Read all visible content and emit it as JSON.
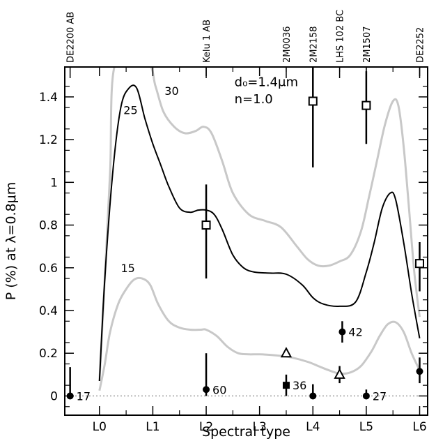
{
  "chart_data": {
    "type": "scatter",
    "xlabel": "Spectral type",
    "ylabel": "P (%) at λ=0.8μm",
    "xlim": [
      -0.65,
      6.15
    ],
    "ylim": [
      -0.09,
      1.54
    ],
    "x_ticks": [
      {
        "x": 0,
        "label": "L0"
      },
      {
        "x": 1,
        "label": "L1"
      },
      {
        "x": 2,
        "label": "L2"
      },
      {
        "x": 3,
        "label": "L3"
      },
      {
        "x": 4,
        "label": "L4"
      },
      {
        "x": 5,
        "label": "L5"
      },
      {
        "x": 6,
        "label": "L6"
      }
    ],
    "y_ticks": [
      {
        "y": 0,
        "label": "0"
      },
      {
        "y": 0.2,
        "label": "0.2"
      },
      {
        "y": 0.4,
        "label": "0.4"
      },
      {
        "y": 0.6,
        "label": "0.6"
      },
      {
        "y": 0.8,
        "label": "0.8"
      },
      {
        "y": 1.0,
        "label": "1"
      },
      {
        "y": 1.2,
        "label": "1.2"
      },
      {
        "y": 1.4,
        "label": "1.4"
      }
    ],
    "zero_line": true,
    "annotations": {
      "d0": "d₀=1.4μm",
      "n": "n=1.0"
    },
    "objects": [
      {
        "name": "DE2200 AB",
        "x": -0.55
      },
      {
        "name": "Kelu 1 AB",
        "x": 2.0
      },
      {
        "name": "2M0036",
        "x": 3.5
      },
      {
        "name": "2M2158",
        "x": 4.0
      },
      {
        "name": "LHS 102 BC",
        "x": 4.5
      },
      {
        "name": "2M1507",
        "x": 5.0
      },
      {
        "name": "DE2252",
        "x": 6.0
      }
    ],
    "series": [
      {
        "marker": "circle",
        "points": [
          {
            "x": -0.55,
            "y": 0.0,
            "ylo": 0.0,
            "yhi": 0.135,
            "label": "17"
          },
          {
            "x": 2.0,
            "y": 0.03,
            "ylo": 0.0,
            "yhi": 0.2,
            "label": "60"
          },
          {
            "x": 4.0,
            "y": 0.0,
            "ylo": 0.0,
            "yhi": 0.055,
            "label": ""
          },
          {
            "x": 4.55,
            "y": 0.3,
            "ylo": 0.25,
            "yhi": 0.35,
            "label": "42"
          },
          {
            "x": 5.0,
            "y": 0.0,
            "ylo": 0.0,
            "yhi": 0.03,
            "label": "27"
          },
          {
            "x": 6.0,
            "y": 0.115,
            "ylo": 0.06,
            "yhi": 0.18,
            "label": ""
          }
        ]
      },
      {
        "marker": "filled-square",
        "points": [
          {
            "x": 3.5,
            "y": 0.05,
            "ylo": 0.0,
            "yhi": 0.1,
            "label": "36"
          }
        ]
      },
      {
        "marker": "open-square",
        "points": [
          {
            "x": 2.0,
            "y": 0.8,
            "ylo": 0.55,
            "yhi": 0.99,
            "label": ""
          },
          {
            "x": 4.0,
            "y": 1.38,
            "ylo": 1.07,
            "yhi": 1.54,
            "label": ""
          },
          {
            "x": 5.0,
            "y": 1.36,
            "ylo": 1.18,
            "yhi": 1.52,
            "label": ""
          },
          {
            "x": 6.0,
            "y": 0.62,
            "ylo": 0.49,
            "yhi": 0.72,
            "label": ""
          }
        ]
      },
      {
        "marker": "open-triangle",
        "points": [
          {
            "x": 3.5,
            "y": 0.2,
            "ylo": 0.2,
            "yhi": 0.2,
            "label": ""
          },
          {
            "x": 4.5,
            "y": 0.1,
            "ylo": 0.06,
            "yhi": 0.14,
            "label": ""
          }
        ]
      }
    ],
    "curves": [
      {
        "label": "25",
        "label_x": 0.45,
        "label_y": 1.32,
        "color": "#000000",
        "x": [
          0.0,
          0.1,
          0.25,
          0.4,
          0.55,
          0.7,
          0.85,
          1.0,
          1.15,
          1.3,
          1.5,
          1.7,
          1.85,
          2.0,
          2.15,
          2.3,
          2.5,
          2.7,
          2.9,
          3.2,
          3.5,
          3.8,
          4.0,
          4.2,
          4.5,
          4.8,
          5.0,
          5.15,
          5.3,
          5.45,
          5.55,
          5.7,
          5.85,
          6.0
        ],
        "y": [
          0.07,
          0.55,
          1.05,
          1.35,
          1.44,
          1.44,
          1.3,
          1.18,
          1.08,
          0.98,
          0.88,
          0.86,
          0.87,
          0.87,
          0.85,
          0.78,
          0.66,
          0.6,
          0.58,
          0.575,
          0.57,
          0.52,
          0.46,
          0.43,
          0.42,
          0.44,
          0.58,
          0.72,
          0.88,
          0.95,
          0.92,
          0.72,
          0.48,
          0.27
        ]
      },
      {
        "label": "30",
        "label_x": 1.22,
        "label_y": 1.41,
        "color": "#c8c8c8",
        "x": [
          0.0,
          0.1,
          0.2,
          0.3,
          0.9,
          1.05,
          1.2,
          1.4,
          1.6,
          1.8,
          1.95,
          2.1,
          2.3,
          2.5,
          2.8,
          3.1,
          3.4,
          3.7,
          3.9,
          4.1,
          4.3,
          4.5,
          4.7,
          4.9,
          5.05,
          5.2,
          5.35,
          5.5,
          5.6,
          5.7,
          5.8,
          5.9,
          6.0
        ],
        "y": [
          0.07,
          0.55,
          1.05,
          1.56,
          1.56,
          1.45,
          1.33,
          1.26,
          1.23,
          1.24,
          1.26,
          1.23,
          1.1,
          0.95,
          0.85,
          0.82,
          0.79,
          0.7,
          0.64,
          0.61,
          0.61,
          0.63,
          0.66,
          0.77,
          0.93,
          1.1,
          1.27,
          1.38,
          1.36,
          1.17,
          0.88,
          0.58,
          0.37
        ]
      },
      {
        "label": "15",
        "label_x": 0.4,
        "label_y": 0.58,
        "color": "#c8c8c8",
        "x": [
          0.0,
          0.1,
          0.2,
          0.35,
          0.5,
          0.65,
          0.8,
          0.95,
          1.1,
          1.3,
          1.5,
          1.7,
          1.9,
          2.0,
          2.2,
          2.4,
          2.6,
          2.8,
          3.0,
          3.3,
          3.6,
          3.9,
          4.1,
          4.3,
          4.5,
          4.7,
          4.9,
          5.1,
          5.25,
          5.4,
          5.55,
          5.7,
          5.85,
          6.0
        ],
        "y": [
          0.025,
          0.15,
          0.3,
          0.43,
          0.5,
          0.545,
          0.55,
          0.52,
          0.43,
          0.35,
          0.32,
          0.31,
          0.31,
          0.31,
          0.28,
          0.23,
          0.2,
          0.195,
          0.195,
          0.19,
          0.18,
          0.16,
          0.14,
          0.12,
          0.105,
          0.11,
          0.14,
          0.21,
          0.28,
          0.335,
          0.345,
          0.3,
          0.2,
          0.12
        ]
      }
    ]
  }
}
